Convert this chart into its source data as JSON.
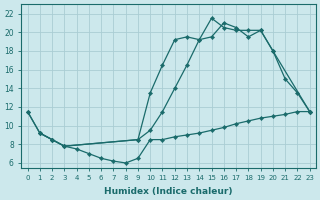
{
  "xlabel": "Humidex (Indice chaleur)",
  "bg_color": "#cce8ec",
  "grid_color": "#aacdd4",
  "line_color": "#1a6b6b",
  "xlim": [
    -0.5,
    23.5
  ],
  "ylim": [
    5.5,
    23.0
  ],
  "xticks": [
    0,
    1,
    2,
    3,
    4,
    5,
    6,
    7,
    8,
    9,
    10,
    11,
    12,
    13,
    14,
    15,
    16,
    17,
    18,
    19,
    20,
    21,
    22,
    23
  ],
  "yticks": [
    6,
    8,
    10,
    12,
    14,
    16,
    18,
    20,
    22
  ],
  "line1_x": [
    0,
    1,
    2,
    3,
    4,
    5,
    6,
    7,
    8,
    9,
    10,
    11,
    12,
    13,
    14,
    15,
    16,
    17,
    18,
    19,
    20,
    21,
    22,
    23
  ],
  "line1_y": [
    11.5,
    9.2,
    8.5,
    7.8,
    7.5,
    7.0,
    6.5,
    6.2,
    6.0,
    6.5,
    8.5,
    8.5,
    8.8,
    9.0,
    9.2,
    9.5,
    9.8,
    10.2,
    10.5,
    10.8,
    11.0,
    11.2,
    11.5,
    11.5
  ],
  "line2_x": [
    0,
    1,
    2,
    3,
    9,
    10,
    11,
    12,
    13,
    14,
    15,
    16,
    17,
    18,
    19,
    20,
    21,
    22,
    23
  ],
  "line2_y": [
    11.5,
    9.2,
    8.5,
    7.8,
    8.5,
    13.5,
    16.5,
    19.2,
    19.5,
    19.2,
    21.5,
    20.5,
    20.2,
    20.2,
    20.2,
    18.0,
    15.0,
    13.5,
    11.5
  ],
  "line3_x": [
    1,
    2,
    3,
    9,
    10,
    11,
    12,
    13,
    14,
    15,
    16,
    17,
    18,
    19,
    20,
    23
  ],
  "line3_y": [
    9.2,
    8.5,
    7.8,
    8.5,
    9.5,
    11.5,
    14.0,
    16.5,
    19.2,
    19.5,
    21.0,
    20.5,
    19.5,
    20.2,
    18.0,
    11.5
  ]
}
